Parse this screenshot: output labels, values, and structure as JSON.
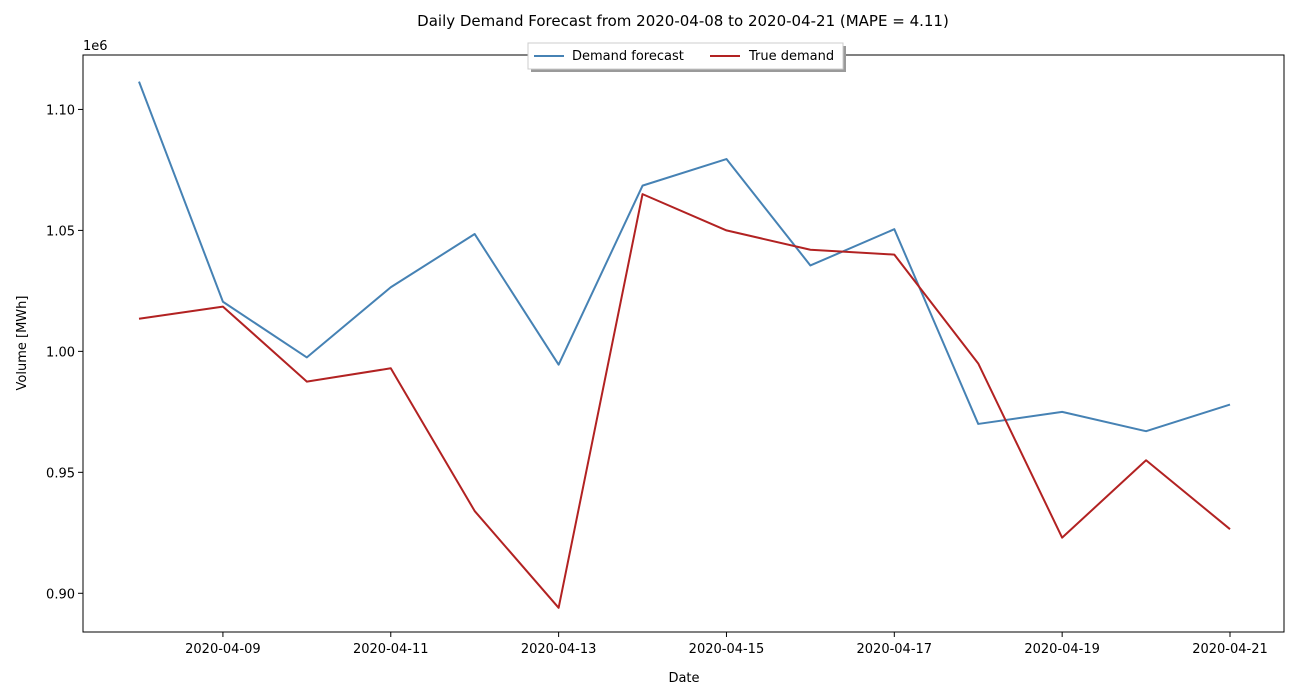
{
  "chart_data": {
    "type": "line",
    "title": "Daily Demand Forecast from 2020-04-08 to 2020-04-21 (MAPE = 4.11)",
    "xlabel": "Date",
    "ylabel": "Volume [MWh]",
    "y_offset_label": "1e6",
    "x": [
      "2020-04-08",
      "2020-04-09",
      "2020-04-10",
      "2020-04-11",
      "2020-04-12",
      "2020-04-13",
      "2020-04-14",
      "2020-04-15",
      "2020-04-16",
      "2020-04-17",
      "2020-04-18",
      "2020-04-19",
      "2020-04-20",
      "2020-04-21"
    ],
    "x_ticks": [
      "2020-04-09",
      "2020-04-11",
      "2020-04-13",
      "2020-04-15",
      "2020-04-17",
      "2020-04-19",
      "2020-04-21"
    ],
    "y_ticks": [
      "0.90",
      "0.95",
      "1.00",
      "1.05",
      "1.10"
    ],
    "y_tick_values": [
      0.9,
      0.95,
      1.0,
      1.05,
      1.1
    ],
    "ylim": [
      0.884,
      1.1225
    ],
    "grid": false,
    "legend_placement": "top-center",
    "series": [
      {
        "name": "Demand forecast",
        "color": "#4682b4",
        "values": [
          1.1115,
          1.0205,
          0.9975,
          1.0265,
          1.0485,
          0.9945,
          1.0685,
          1.0795,
          1.0355,
          1.0505,
          0.97,
          0.975,
          0.967,
          0.978
        ]
      },
      {
        "name": "True demand",
        "color": "#b22222",
        "values": [
          1.0135,
          1.0185,
          0.9875,
          0.993,
          0.934,
          0.894,
          1.065,
          1.05,
          1.042,
          1.04,
          0.995,
          0.923,
          0.955,
          0.9265
        ]
      }
    ]
  }
}
